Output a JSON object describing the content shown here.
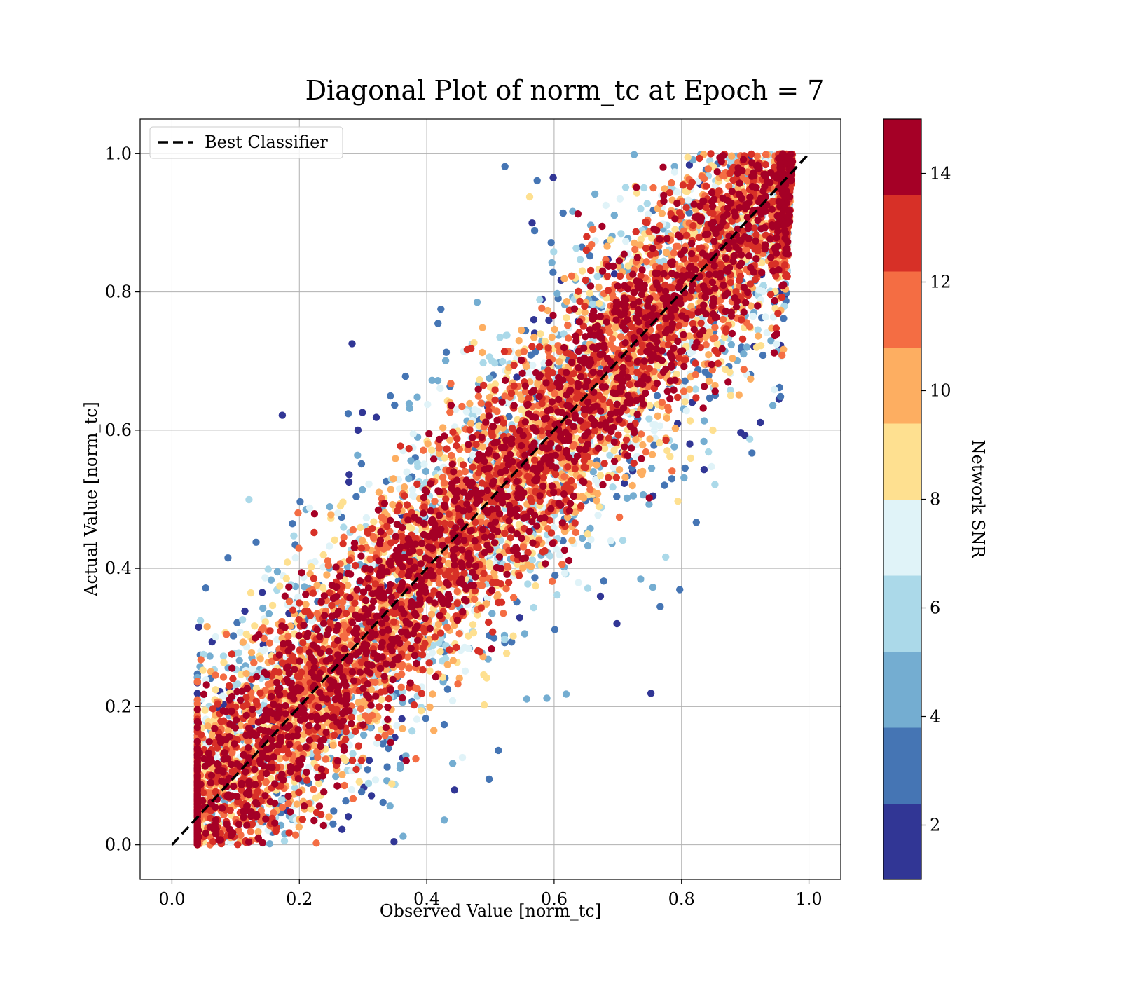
{
  "chart_data": {
    "type": "scatter",
    "title": "Diagonal Plot of norm_tc at Epoch = 7",
    "xlabel": "Observed Value [norm_tc]",
    "ylabel": "Actual Value [norm_tc]",
    "xlim": [
      -0.05,
      1.05
    ],
    "ylim": [
      -0.05,
      1.05
    ],
    "xticks": [
      "0.0",
      "0.2",
      "0.4",
      "0.6",
      "0.8",
      "1.0"
    ],
    "yticks": [
      "0.0",
      "0.2",
      "0.4",
      "0.6",
      "0.8",
      "1.0"
    ],
    "grid": true,
    "legend": {
      "placement": "top-left",
      "entries": [
        {
          "label": "Best Classifier",
          "style": "dashed",
          "color": "#000000"
        }
      ]
    },
    "reference_line": {
      "name": "Best Classifier",
      "x": [
        0.0,
        1.0
      ],
      "y": [
        0.0,
        1.0
      ]
    },
    "colorbar": {
      "label": "Network SNR",
      "range": [
        1,
        15
      ],
      "ticks": [
        "2",
        "4",
        "6",
        "8",
        "10",
        "12",
        "14"
      ],
      "tick_values": [
        2,
        4,
        6,
        8,
        10,
        12,
        14
      ],
      "colors": [
        "#313695",
        "#4575b4",
        "#74add1",
        "#abd9e9",
        "#e0f3f8",
        "#fee090",
        "#fdae61",
        "#f46d43",
        "#d73027",
        "#a50026"
      ]
    },
    "scatter": {
      "x_range": [
        0.0,
        1.0
      ],
      "y_range": [
        0.0,
        1.0
      ],
      "description_ignored": false,
      "snr_color_scale": "RdYlBu_r"
    }
  }
}
